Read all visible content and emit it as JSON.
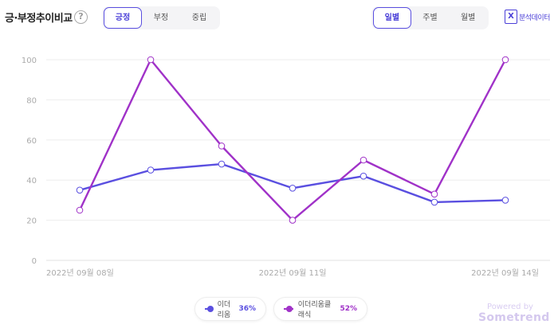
{
  "header": {
    "title": "긍·부정추이비교",
    "help_symbol": "?",
    "sentiment_tabs": [
      {
        "label": "긍정",
        "active": true
      },
      {
        "label": "부정",
        "active": false
      },
      {
        "label": "중립",
        "active": false
      }
    ],
    "period_tabs": [
      {
        "label": "일별",
        "active": true
      },
      {
        "label": "주별",
        "active": false
      },
      {
        "label": "월별",
        "active": false
      }
    ],
    "export_label": "분석데이터",
    "export_icon": "excel-file-icon"
  },
  "chart_data": {
    "type": "line",
    "x": [
      "2022-09-08",
      "2022-09-09",
      "2022-09-10",
      "2022-09-11",
      "2022-09-12",
      "2022-09-13",
      "2022-09-14"
    ],
    "x_tick_labels": [
      "2022년 09월 08일",
      "2022년 09월 11일",
      "2022년 09월 14일"
    ],
    "x_tick_indices": [
      0,
      3,
      6
    ],
    "y_ticks": [
      0,
      20,
      40,
      60,
      80,
      100
    ],
    "ylim": [
      0,
      100
    ],
    "grid": true,
    "legend_position": "bottom",
    "series": [
      {
        "name": "이더리움",
        "percent": "36%",
        "color": "#5a4fe0",
        "values": [
          35,
          45,
          48,
          36,
          42,
          29,
          30
        ]
      },
      {
        "name": "이더리움클래식",
        "percent": "52%",
        "color": "#a032c8",
        "values": [
          25,
          100,
          57,
          20,
          50,
          33,
          100
        ]
      }
    ]
  },
  "footer": {
    "powered_by": "Powered by",
    "brand": "Sometrend"
  }
}
